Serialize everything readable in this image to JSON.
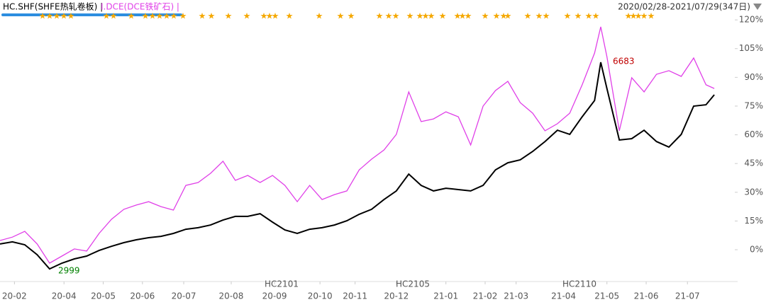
{
  "chart_data": {
    "type": "line",
    "header": [
      "HC.SHF(SHFE热轧卷板) | ",
      "I.DCE(DCE铁矿石) |"
    ],
    "range_label": "2020/02/28-2021/07/29(347日)",
    "x": [
      0,
      6,
      12,
      18,
      24,
      30,
      36,
      42,
      48,
      54,
      60,
      66,
      72,
      78,
      84,
      90,
      96,
      102,
      108,
      114,
      120,
      126,
      132,
      138,
      144,
      150,
      156,
      162,
      168,
      174,
      180,
      186,
      192,
      198,
      204,
      210,
      216,
      222,
      228,
      234,
      240,
      246,
      252,
      258,
      264,
      270,
      276,
      282,
      288,
      291,
      294,
      300,
      306,
      312,
      318,
      324,
      330,
      336,
      342,
      346
    ],
    "xlim": [
      0,
      347
    ],
    "xticks": [
      {
        "value": 7,
        "label": "20-02"
      },
      {
        "value": 31,
        "label": "20-04"
      },
      {
        "value": 50,
        "label": "20-05"
      },
      {
        "value": 69,
        "label": "20-06"
      },
      {
        "value": 89,
        "label": "20-07"
      },
      {
        "value": 112,
        "label": "20-08"
      },
      {
        "value": 133,
        "label": "20-09"
      },
      {
        "value": 155,
        "label": "20-10"
      },
      {
        "value": 172,
        "label": "20-11"
      },
      {
        "value": 192,
        "label": "20-12"
      },
      {
        "value": 216,
        "label": "21-01"
      },
      {
        "value": 235,
        "label": "21-02"
      },
      {
        "value": 250,
        "label": "21-03"
      },
      {
        "value": 273,
        "label": "21-04"
      },
      {
        "value": 294,
        "label": "21-05"
      },
      {
        "value": 313,
        "label": "21-06"
      },
      {
        "value": 333,
        "label": "21-07"
      }
    ],
    "ylim": [
      -15.5,
      123
    ],
    "yticks": [
      {
        "value": 120,
        "label": "120%"
      },
      {
        "value": 105,
        "label": "105%"
      },
      {
        "value": 90,
        "label": "90%"
      },
      {
        "value": 75,
        "label": "75%"
      },
      {
        "value": 60,
        "label": "60%"
      },
      {
        "value": 45,
        "label": "45%"
      },
      {
        "value": 30,
        "label": "30%"
      },
      {
        "value": 15,
        "label": "15%"
      },
      {
        "value": 0,
        "label": "0%"
      }
    ],
    "contracts": [
      "HC2101",
      "HC2105",
      "HC2110"
    ],
    "annotations": [
      {
        "text": "6683",
        "color": "#c00000"
      },
      {
        "text": "2999",
        "color": "#008000"
      }
    ],
    "series": [
      {
        "color": "#e040e8",
        "values": [
          4.8,
          6.6,
          9.6,
          3.0,
          -7.0,
          -3.3,
          0.4,
          -0.7,
          8.5,
          15.9,
          21.1,
          23.3,
          25.1,
          22.5,
          20.7,
          33.6,
          35.1,
          39.9,
          46.2,
          36.2,
          38.8,
          35.1,
          38.8,
          33.6,
          25.1,
          33.6,
          26.2,
          28.8,
          30.7,
          41.7,
          47.3,
          52.1,
          60.2,
          82.4,
          66.9,
          68.3,
          72.0,
          69.4,
          54.7,
          75.0,
          83.1,
          87.9,
          76.8,
          71.3,
          62.1,
          65.8,
          71.3,
          86.1,
          102.7,
          116.4,
          100.8,
          62.1,
          89.8,
          82.4,
          91.6,
          93.5,
          90.5,
          100.1,
          86.1,
          84.2
        ]
      },
      {
        "color": "#000000",
        "values": [
          3.0,
          4.1,
          2.6,
          -2.6,
          -10.0,
          -7.0,
          -4.8,
          -3.3,
          -0.4,
          1.8,
          3.7,
          5.2,
          6.3,
          7.0,
          8.5,
          10.7,
          11.5,
          12.9,
          15.5,
          17.4,
          17.4,
          18.8,
          14.4,
          10.3,
          8.5,
          10.7,
          11.5,
          12.9,
          15.1,
          18.5,
          21.1,
          26.2,
          30.7,
          39.5,
          33.6,
          30.7,
          32.1,
          31.4,
          30.7,
          33.6,
          41.7,
          45.4,
          46.9,
          51.3,
          56.5,
          62.4,
          60.2,
          69.4,
          77.9,
          97.9,
          84.2,
          57.3,
          58.0,
          62.4,
          56.5,
          53.6,
          60.2,
          75.0,
          75.7,
          80.9
        ]
      }
    ]
  }
}
